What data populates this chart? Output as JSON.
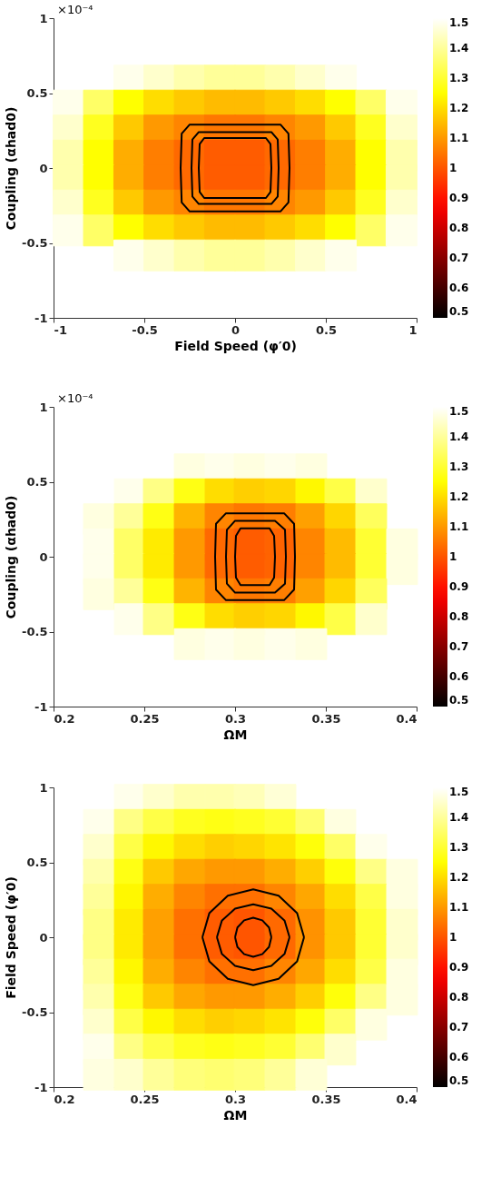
{
  "chart_data": [
    {
      "type": "scatter",
      "marker": "square",
      "xlabel": "Field Speed (φ′0)",
      "ylabel": "Coupling (αhad0)",
      "annotations": [
        "×10⁻⁴"
      ],
      "xlim": [
        -1,
        1
      ],
      "ylim": [
        -1,
        1
      ],
      "xticks": [
        -1,
        -0.5,
        0,
        0.5,
        1
      ],
      "yticks": [
        -1,
        -0.5,
        0,
        0.5,
        1
      ],
      "clim": [
        0.5,
        1.5
      ],
      "cticks": [
        0.5,
        0.6,
        0.7,
        0.8,
        0.9,
        1,
        1.1,
        1.2,
        1.3,
        1.4,
        1.5
      ],
      "grid": false,
      "series": [
        {
          "x": [
            -0.583,
            -0.417,
            -0.25,
            -0.083,
            0.083,
            0.25,
            0.417,
            0.583
          ],
          "values": [
            0.583,
            0.583,
            0.583,
            0.583,
            0.583,
            0.583,
            0.583,
            0.583
          ],
          "cvalues": [
            1.48,
            1.45,
            1.42,
            1.4,
            1.4,
            1.42,
            1.45,
            1.48
          ],
          "colors": [
            "#ffffeb",
            "#ffffcc",
            "#ffffad",
            "#ffff99",
            "#ffff99",
            "#ffffad",
            "#ffffcc",
            "#ffffeb"
          ]
        },
        {
          "x": [
            -0.917,
            -0.75,
            -0.583,
            -0.417,
            -0.25,
            -0.083,
            0.083,
            0.25,
            0.417,
            0.583,
            0.75,
            0.917
          ],
          "values": [
            0.417,
            0.417,
            0.417,
            0.417,
            0.417,
            0.417,
            0.417,
            0.417,
            0.417,
            0.417,
            0.417,
            0.417
          ],
          "cvalues": [
            1.48,
            1.35,
            1.25,
            1.2,
            1.17,
            1.15,
            1.15,
            1.17,
            1.2,
            1.25,
            1.35,
            1.48
          ],
          "colors": [
            "#ffffeb",
            "#ffff66",
            "#ffff00",
            "#ffdd00",
            "#ffc900",
            "#ffbb00",
            "#ffbb00",
            "#ffc900",
            "#ffdd00",
            "#ffff00",
            "#ffff66",
            "#ffffeb"
          ]
        },
        {
          "x": [
            -0.917,
            -0.75,
            -0.583,
            -0.417,
            -0.25,
            -0.083,
            0.083,
            0.25,
            0.417,
            0.583,
            0.75,
            0.917
          ],
          "values": [
            0.25,
            0.25,
            0.25,
            0.25,
            0.25,
            0.25,
            0.25,
            0.25,
            0.25,
            0.25,
            0.25,
            0.25
          ],
          "cvalues": [
            1.45,
            1.28,
            1.17,
            1.1,
            1.07,
            1.05,
            1.05,
            1.07,
            1.1,
            1.17,
            1.28,
            1.45
          ],
          "colors": [
            "#ffffcc",
            "#ffff1f",
            "#ffc900",
            "#ff9900",
            "#ff8500",
            "#ff7700",
            "#ff7700",
            "#ff8500",
            "#ff9900",
            "#ffc900",
            "#ffff1f",
            "#ffffcc"
          ]
        },
        {
          "x": [
            -0.917,
            -0.75,
            -0.583,
            -0.417,
            -0.25,
            -0.083,
            0.083,
            0.25,
            0.417,
            0.583,
            0.75,
            0.917
          ],
          "values": [
            0.083,
            0.083,
            0.083,
            0.083,
            0.083,
            0.083,
            0.083,
            0.083,
            0.083,
            0.083,
            0.083,
            0.083
          ],
          "cvalues": [
            1.42,
            1.25,
            1.13,
            1.06,
            1.03,
            1.01,
            1.01,
            1.03,
            1.06,
            1.13,
            1.25,
            1.42
          ],
          "colors": [
            "#ffffad",
            "#ffff00",
            "#ffad00",
            "#ff7e00",
            "#ff6900",
            "#ff5c00",
            "#ff5c00",
            "#ff6900",
            "#ff7e00",
            "#ffad00",
            "#ffff00",
            "#ffffad"
          ]
        },
        {
          "x": [
            -0.917,
            -0.75,
            -0.583,
            -0.417,
            -0.25,
            -0.083,
            0.083,
            0.25,
            0.417,
            0.583,
            0.75,
            0.917
          ],
          "values": [
            -0.083,
            -0.083,
            -0.083,
            -0.083,
            -0.083,
            -0.083,
            -0.083,
            -0.083,
            -0.083,
            -0.083,
            -0.083,
            -0.083
          ],
          "cvalues": [
            1.42,
            1.25,
            1.13,
            1.06,
            1.03,
            1.01,
            1.01,
            1.03,
            1.06,
            1.13,
            1.25,
            1.42
          ],
          "colors": [
            "#ffffad",
            "#ffff00",
            "#ffad00",
            "#ff7e00",
            "#ff6900",
            "#ff5c00",
            "#ff5c00",
            "#ff6900",
            "#ff7e00",
            "#ffad00",
            "#ffff00",
            "#ffffad"
          ]
        },
        {
          "x": [
            -0.917,
            -0.75,
            -0.583,
            -0.417,
            -0.25,
            -0.083,
            0.083,
            0.25,
            0.417,
            0.583,
            0.75,
            0.917
          ],
          "values": [
            -0.25,
            -0.25,
            -0.25,
            -0.25,
            -0.25,
            -0.25,
            -0.25,
            -0.25,
            -0.25,
            -0.25,
            -0.25,
            -0.25
          ],
          "cvalues": [
            1.45,
            1.28,
            1.17,
            1.1,
            1.07,
            1.05,
            1.05,
            1.07,
            1.1,
            1.17,
            1.28,
            1.45
          ],
          "colors": [
            "#ffffcc",
            "#ffff1f",
            "#ffc900",
            "#ff9900",
            "#ff8500",
            "#ff7700",
            "#ff7700",
            "#ff8500",
            "#ff9900",
            "#ffc900",
            "#ffff1f",
            "#ffffcc"
          ]
        },
        {
          "x": [
            -0.917,
            -0.75,
            -0.583,
            -0.417,
            -0.25,
            -0.083,
            0.083,
            0.25,
            0.417,
            0.583,
            0.75,
            0.917
          ],
          "values": [
            -0.417,
            -0.417,
            -0.417,
            -0.417,
            -0.417,
            -0.417,
            -0.417,
            -0.417,
            -0.417,
            -0.417,
            -0.417,
            -0.417
          ],
          "cvalues": [
            1.48,
            1.35,
            1.25,
            1.2,
            1.17,
            1.15,
            1.15,
            1.17,
            1.2,
            1.25,
            1.35,
            1.48
          ],
          "colors": [
            "#ffffeb",
            "#ffff66",
            "#ffff00",
            "#ffdd00",
            "#ffc900",
            "#ffbb00",
            "#ffbb00",
            "#ffc900",
            "#ffdd00",
            "#ffff00",
            "#ffff66",
            "#ffffeb"
          ]
        },
        {
          "x": [
            -0.583,
            -0.417,
            -0.25,
            -0.083,
            0.083,
            0.25,
            0.417,
            0.583
          ],
          "values": [
            -0.583,
            -0.583,
            -0.583,
            -0.583,
            -0.583,
            -0.583,
            -0.583,
            -0.583
          ],
          "cvalues": [
            1.48,
            1.45,
            1.42,
            1.4,
            1.4,
            1.42,
            1.45,
            1.48
          ],
          "colors": [
            "#ffffeb",
            "#ffffcc",
            "#ffffad",
            "#ffff99",
            "#ffff99",
            "#ffffad",
            "#ffffcc",
            "#ffffeb"
          ]
        },
        {
          "type": "line",
          "marker": "none",
          "color": "#000000",
          "x": [
            -0.2,
            -0.195,
            -0.17,
            0,
            0.17,
            0.195,
            0.2
          ],
          "values": [
            0,
            0.16,
            0.2,
            0.2,
            0.2,
            0.16,
            0
          ]
        },
        {
          "type": "line",
          "marker": "none",
          "color": "#000000",
          "x": [
            -0.2,
            -0.195,
            -0.17,
            0,
            0.17,
            0.195,
            0.2
          ],
          "values": [
            0,
            -0.16,
            -0.2,
            -0.2,
            -0.2,
            -0.16,
            0
          ]
        },
        {
          "type": "line",
          "marker": "none",
          "color": "#000000",
          "x": [
            -0.24,
            -0.235,
            -0.2,
            0,
            0.2,
            0.235,
            0.24
          ],
          "values": [
            0,
            0.19,
            0.24,
            0.24,
            0.24,
            0.19,
            0
          ]
        },
        {
          "type": "line",
          "marker": "none",
          "color": "#000000",
          "x": [
            -0.24,
            -0.235,
            -0.2,
            0,
            0.2,
            0.235,
            0.24
          ],
          "values": [
            0,
            -0.19,
            -0.24,
            -0.24,
            -0.24,
            -0.19,
            0
          ]
        },
        {
          "type": "line",
          "marker": "none",
          "color": "#000000",
          "x": [
            -0.3,
            -0.294,
            -0.25,
            0,
            0.25,
            0.294,
            0.3
          ],
          "values": [
            0,
            0.23,
            0.29,
            0.29,
            0.29,
            0.23,
            0
          ]
        },
        {
          "type": "line",
          "marker": "none",
          "color": "#000000",
          "x": [
            -0.3,
            -0.294,
            -0.25,
            0,
            0.25,
            0.294,
            0.3
          ],
          "values": [
            0,
            -0.23,
            -0.29,
            -0.29,
            -0.29,
            -0.23,
            0
          ]
        }
      ]
    },
    {
      "type": "scatter",
      "marker": "square",
      "xlabel": "ΩM",
      "ylabel": "Coupling (αhad0)",
      "annotations": [
        "×10⁻⁴"
      ],
      "xlim": [
        0.2,
        0.4
      ],
      "ylim": [
        -1,
        1
      ],
      "xticks": [
        0.2,
        0.25,
        0.3,
        0.35,
        0.4
      ],
      "yticks": [
        -1,
        -0.5,
        0,
        0.5,
        1
      ],
      "clim": [
        0.5,
        1.5
      ],
      "cticks": [
        0.5,
        0.6,
        0.7,
        0.8,
        0.9,
        1,
        1.1,
        1.2,
        1.3,
        1.4,
        1.5
      ],
      "grid": false,
      "series": [
        {
          "x": [
            0.275,
            0.292,
            0.308,
            0.325,
            0.342
          ],
          "values": [
            0.583,
            0.583,
            0.583,
            0.583,
            0.583
          ],
          "cvalues": [
            1.47,
            1.48,
            1.47,
            1.48,
            1.47
          ],
          "colors": [
            "#ffffe0",
            "#ffffeb",
            "#ffffe0",
            "#ffffeb",
            "#ffffe0"
          ]
        },
        {
          "x": [
            0.242,
            0.258,
            0.275,
            0.292,
            0.308,
            0.325,
            0.342,
            0.358,
            0.375
          ],
          "values": [
            0.417,
            0.417,
            0.417,
            0.417,
            0.417,
            0.417,
            0.417,
            0.417,
            0.417
          ],
          "cvalues": [
            1.48,
            1.38,
            1.27,
            1.2,
            1.18,
            1.19,
            1.24,
            1.32,
            1.45
          ],
          "colors": [
            "#ffffeb",
            "#ffff85",
            "#ffff14",
            "#ffdd00",
            "#ffcf00",
            "#ffd600",
            "#fff800",
            "#ffff47",
            "#ffffcc"
          ]
        },
        {
          "x": [
            0.225,
            0.242,
            0.258,
            0.275,
            0.292,
            0.308,
            0.325,
            0.342,
            0.358,
            0.375
          ],
          "values": [
            0.25,
            0.25,
            0.25,
            0.25,
            0.25,
            0.25,
            0.25,
            0.25,
            0.25,
            0.25
          ],
          "cvalues": [
            1.47,
            1.4,
            1.27,
            1.14,
            1.07,
            1.05,
            1.06,
            1.11,
            1.19,
            1.34
          ],
          "colors": [
            "#ffffe0",
            "#ffff99",
            "#ffff14",
            "#ffb400",
            "#ff8500",
            "#ff7700",
            "#ff7e00",
            "#ffa000",
            "#ffd600",
            "#ffff5c"
          ]
        },
        {
          "x": [
            0.225,
            0.242,
            0.258,
            0.275,
            0.292,
            0.308,
            0.325,
            0.342,
            0.358,
            0.375,
            0.392
          ],
          "values": [
            0.083,
            0.083,
            0.083,
            0.083,
            0.083,
            0.083,
            0.083,
            0.083,
            0.083,
            0.083,
            0.083
          ],
          "cvalues": [
            1.48,
            1.35,
            1.22,
            1.1,
            1.03,
            1.01,
            1.02,
            1.07,
            1.15,
            1.3,
            1.47
          ],
          "colors": [
            "#ffffeb",
            "#ffff66",
            "#ffeb00",
            "#ff9900",
            "#ff6900",
            "#ff5c00",
            "#ff6300",
            "#ff8500",
            "#ffbb00",
            "#ffff33",
            "#ffffe0"
          ]
        },
        {
          "x": [
            0.225,
            0.242,
            0.258,
            0.275,
            0.292,
            0.308,
            0.325,
            0.342,
            0.358,
            0.375,
            0.392
          ],
          "values": [
            -0.083,
            -0.083,
            -0.083,
            -0.083,
            -0.083,
            -0.083,
            -0.083,
            -0.083,
            -0.083,
            -0.083,
            -0.083
          ],
          "cvalues": [
            1.48,
            1.35,
            1.22,
            1.1,
            1.03,
            1.01,
            1.02,
            1.07,
            1.15,
            1.3,
            1.47
          ],
          "colors": [
            "#ffffeb",
            "#ffff66",
            "#ffeb00",
            "#ff9900",
            "#ff6900",
            "#ff5c00",
            "#ff6300",
            "#ff8500",
            "#ffbb00",
            "#ffff33",
            "#ffffe0"
          ]
        },
        {
          "x": [
            0.225,
            0.242,
            0.258,
            0.275,
            0.292,
            0.308,
            0.325,
            0.342,
            0.358,
            0.375
          ],
          "values": [
            -0.25,
            -0.25,
            -0.25,
            -0.25,
            -0.25,
            -0.25,
            -0.25,
            -0.25,
            -0.25,
            -0.25
          ],
          "cvalues": [
            1.47,
            1.4,
            1.27,
            1.14,
            1.07,
            1.05,
            1.06,
            1.11,
            1.19,
            1.34
          ],
          "colors": [
            "#ffffe0",
            "#ffff99",
            "#ffff14",
            "#ffb400",
            "#ff8500",
            "#ff7700",
            "#ff7e00",
            "#ffa000",
            "#ffd600",
            "#ffff5c"
          ]
        },
        {
          "x": [
            0.242,
            0.258,
            0.275,
            0.292,
            0.308,
            0.325,
            0.342,
            0.358,
            0.375
          ],
          "values": [
            -0.417,
            -0.417,
            -0.417,
            -0.417,
            -0.417,
            -0.417,
            -0.417,
            -0.417,
            -0.417
          ],
          "cvalues": [
            1.48,
            1.38,
            1.27,
            1.2,
            1.18,
            1.19,
            1.24,
            1.32,
            1.45
          ],
          "colors": [
            "#ffffeb",
            "#ffff85",
            "#ffff14",
            "#ffdd00",
            "#ffcf00",
            "#ffd600",
            "#fff800",
            "#ffff47",
            "#ffffcc"
          ]
        },
        {
          "x": [
            0.275,
            0.292,
            0.308,
            0.325,
            0.342
          ],
          "values": [
            -0.583,
            -0.583,
            -0.583,
            -0.583,
            -0.583
          ],
          "cvalues": [
            1.47,
            1.48,
            1.47,
            1.48,
            1.47
          ],
          "colors": [
            "#ffffe0",
            "#ffffeb",
            "#ffffe0",
            "#ffffeb",
            "#ffffe0"
          ]
        },
        {
          "type": "line",
          "marker": "none",
          "color": "#000000",
          "x": [
            0.3,
            0.3005,
            0.303,
            0.311,
            0.319,
            0.3215,
            0.322
          ],
          "values": [
            0,
            0.14,
            0.19,
            0.19,
            0.19,
            0.14,
            0
          ]
        },
        {
          "type": "line",
          "marker": "none",
          "color": "#000000",
          "x": [
            0.3,
            0.3005,
            0.303,
            0.311,
            0.319,
            0.3215,
            0.322
          ],
          "values": [
            0,
            -0.14,
            -0.19,
            -0.19,
            -0.19,
            -0.14,
            0
          ]
        },
        {
          "type": "line",
          "marker": "none",
          "color": "#000000",
          "x": [
            0.295,
            0.2955,
            0.3,
            0.311,
            0.322,
            0.3275,
            0.328
          ],
          "values": [
            0,
            0.18,
            0.24,
            0.24,
            0.24,
            0.18,
            0
          ]
        },
        {
          "type": "line",
          "marker": "none",
          "color": "#000000",
          "x": [
            0.295,
            0.2955,
            0.3,
            0.311,
            0.322,
            0.3275,
            0.328
          ],
          "values": [
            0,
            -0.18,
            -0.24,
            -0.24,
            -0.24,
            -0.18,
            0
          ]
        },
        {
          "type": "line",
          "marker": "none",
          "color": "#000000",
          "x": [
            0.289,
            0.2895,
            0.295,
            0.311,
            0.327,
            0.3325,
            0.333
          ],
          "values": [
            0,
            0.22,
            0.29,
            0.29,
            0.29,
            0.22,
            0
          ]
        },
        {
          "type": "line",
          "marker": "none",
          "color": "#000000",
          "x": [
            0.289,
            0.2895,
            0.295,
            0.311,
            0.327,
            0.3325,
            0.333
          ],
          "values": [
            0,
            -0.22,
            -0.29,
            -0.29,
            -0.29,
            -0.22,
            0
          ]
        }
      ]
    },
    {
      "type": "scatter",
      "marker": "square",
      "xlabel": "ΩM",
      "ylabel": "Field Speed (φ′0)",
      "xlim": [
        0.2,
        0.4
      ],
      "ylim": [
        -1,
        1
      ],
      "xticks": [
        0.2,
        0.25,
        0.3,
        0.35,
        0.4
      ],
      "yticks": [
        -1,
        -0.5,
        0,
        0.5,
        1
      ],
      "clim": [
        0.5,
        1.5
      ],
      "cticks": [
        0.5,
        0.6,
        0.7,
        0.8,
        0.9,
        1,
        1.1,
        1.2,
        1.3,
        1.4,
        1.5
      ],
      "grid": false,
      "series": [
        {
          "x": [
            0.242,
            0.258,
            0.275,
            0.292,
            0.308,
            0.325
          ],
          "values": [
            0.917,
            0.917,
            0.917,
            0.917,
            0.917,
            0.917
          ],
          "cvalues": [
            1.48,
            1.45,
            1.42,
            1.42,
            1.43,
            1.46
          ],
          "colors": [
            "#ffffeb",
            "#ffffcc",
            "#ffffad",
            "#ffffad",
            "#ffffb8",
            "#ffffd6"
          ]
        },
        {
          "x": [
            0.225,
            0.242,
            0.258,
            0.275,
            0.292,
            0.308,
            0.325,
            0.342,
            0.358
          ],
          "values": [
            0.75,
            0.75,
            0.75,
            0.75,
            0.75,
            0.75,
            0.75,
            0.75,
            0.75
          ],
          "cvalues": [
            1.48,
            1.38,
            1.32,
            1.28,
            1.27,
            1.28,
            1.3,
            1.36,
            1.47
          ],
          "colors": [
            "#ffffeb",
            "#ffff85",
            "#ffff47",
            "#ffff1f",
            "#ffff14",
            "#ffff1f",
            "#ffff33",
            "#ffff70",
            "#ffffe0"
          ]
        },
        {
          "x": [
            0.225,
            0.242,
            0.258,
            0.275,
            0.292,
            0.308,
            0.325,
            0.342,
            0.358,
            0.375
          ],
          "values": [
            0.583,
            0.583,
            0.583,
            0.583,
            0.583,
            0.583,
            0.583,
            0.583,
            0.583,
            0.583
          ],
          "cvalues": [
            1.45,
            1.32,
            1.24,
            1.2,
            1.18,
            1.19,
            1.21,
            1.26,
            1.35,
            1.48
          ],
          "colors": [
            "#ffffcc",
            "#ffff47",
            "#fff800",
            "#ffdd00",
            "#ffcf00",
            "#ffd600",
            "#ffe400",
            "#ffff0a",
            "#ffff66",
            "#ffffeb"
          ]
        },
        {
          "x": [
            0.225,
            0.242,
            0.258,
            0.275,
            0.292,
            0.308,
            0.325,
            0.342,
            0.358,
            0.375,
            0.392
          ],
          "values": [
            0.417,
            0.417,
            0.417,
            0.417,
            0.417,
            0.417,
            0.417,
            0.417,
            0.417,
            0.417,
            0.417
          ],
          "cvalues": [
            1.42,
            1.27,
            1.17,
            1.12,
            1.1,
            1.1,
            1.13,
            1.18,
            1.26,
            1.38,
            1.47
          ],
          "colors": [
            "#ffffad",
            "#ffff14",
            "#ffc900",
            "#ffa700",
            "#ff9900",
            "#ff9900",
            "#ffad00",
            "#ffcf00",
            "#ffff0a",
            "#ffff85",
            "#ffffe0"
          ]
        },
        {
          "x": [
            0.225,
            0.242,
            0.258,
            0.275,
            0.292,
            0.308,
            0.325,
            0.342,
            0.358,
            0.375,
            0.392
          ],
          "values": [
            0.25,
            0.25,
            0.25,
            0.25,
            0.25,
            0.25,
            0.25,
            0.25,
            0.25,
            0.25,
            0.25
          ],
          "cvalues": [
            1.4,
            1.24,
            1.13,
            1.07,
            1.04,
            1.04,
            1.07,
            1.12,
            1.2,
            1.32,
            1.47
          ],
          "colors": [
            "#ffff99",
            "#fff800",
            "#ffad00",
            "#ff8500",
            "#ff7000",
            "#ff7000",
            "#ff8500",
            "#ffa700",
            "#ffdd00",
            "#ffff47",
            "#ffffe0"
          ]
        },
        {
          "x": [
            0.225,
            0.242,
            0.258,
            0.275,
            0.292,
            0.308,
            0.325,
            0.342,
            0.358,
            0.375,
            0.392
          ],
          "values": [
            0.083,
            0.083,
            0.083,
            0.083,
            0.083,
            0.083,
            0.083,
            0.083,
            0.083,
            0.083,
            0.083
          ],
          "cvalues": [
            1.38,
            1.22,
            1.11,
            1.04,
            1.01,
            1.0,
            1.03,
            1.09,
            1.17,
            1.3,
            1.45
          ],
          "colors": [
            "#ffff85",
            "#ffeb00",
            "#ffa000",
            "#ff7000",
            "#ff5c00",
            "#ff5500",
            "#ff6900",
            "#ff9200",
            "#ffc900",
            "#ffff33",
            "#ffffcc"
          ]
        },
        {
          "x": [
            0.225,
            0.242,
            0.258,
            0.275,
            0.292,
            0.308,
            0.325,
            0.342,
            0.358,
            0.375,
            0.392
          ],
          "values": [
            -0.083,
            -0.083,
            -0.083,
            -0.083,
            -0.083,
            -0.083,
            -0.083,
            -0.083,
            -0.083,
            -0.083,
            -0.083
          ],
          "cvalues": [
            1.38,
            1.22,
            1.11,
            1.04,
            1.01,
            1.0,
            1.03,
            1.09,
            1.17,
            1.3,
            1.45
          ],
          "colors": [
            "#ffff85",
            "#ffeb00",
            "#ffa000",
            "#ff7000",
            "#ff5c00",
            "#ff5500",
            "#ff6900",
            "#ff9200",
            "#ffc900",
            "#ffff33",
            "#ffffcc"
          ]
        },
        {
          "x": [
            0.225,
            0.242,
            0.258,
            0.275,
            0.292,
            0.308,
            0.325,
            0.342,
            0.358,
            0.375,
            0.392
          ],
          "values": [
            -0.25,
            -0.25,
            -0.25,
            -0.25,
            -0.25,
            -0.25,
            -0.25,
            -0.25,
            -0.25,
            -0.25,
            -0.25
          ],
          "cvalues": [
            1.4,
            1.24,
            1.13,
            1.07,
            1.04,
            1.04,
            1.07,
            1.12,
            1.2,
            1.32,
            1.47
          ],
          "colors": [
            "#ffff99",
            "#fff800",
            "#ffad00",
            "#ff8500",
            "#ff7000",
            "#ff7000",
            "#ff8500",
            "#ffa700",
            "#ffdd00",
            "#ffff47",
            "#ffffe0"
          ]
        },
        {
          "x": [
            0.225,
            0.242,
            0.258,
            0.275,
            0.292,
            0.308,
            0.325,
            0.342,
            0.358,
            0.375,
            0.392
          ],
          "values": [
            -0.417,
            -0.417,
            -0.417,
            -0.417,
            -0.417,
            -0.417,
            -0.417,
            -0.417,
            -0.417,
            -0.417,
            -0.417
          ],
          "cvalues": [
            1.42,
            1.27,
            1.17,
            1.12,
            1.1,
            1.1,
            1.13,
            1.18,
            1.26,
            1.38,
            1.47
          ],
          "colors": [
            "#ffffad",
            "#ffff14",
            "#ffc900",
            "#ffa700",
            "#ff9900",
            "#ff9900",
            "#ffad00",
            "#ffcf00",
            "#ffff0a",
            "#ffff85",
            "#ffffe0"
          ]
        },
        {
          "x": [
            0.225,
            0.242,
            0.258,
            0.275,
            0.292,
            0.308,
            0.325,
            0.342,
            0.358,
            0.375
          ],
          "values": [
            -0.583,
            -0.583,
            -0.583,
            -0.583,
            -0.583,
            -0.583,
            -0.583,
            -0.583,
            -0.583,
            -0.583
          ],
          "cvalues": [
            1.45,
            1.32,
            1.24,
            1.2,
            1.18,
            1.19,
            1.21,
            1.26,
            1.35,
            1.47
          ],
          "colors": [
            "#ffffcc",
            "#ffff47",
            "#fff800",
            "#ffdd00",
            "#ffcf00",
            "#ffd600",
            "#ffe400",
            "#ffff0a",
            "#ffff66",
            "#ffffe0"
          ]
        },
        {
          "x": [
            0.225,
            0.242,
            0.258,
            0.275,
            0.292,
            0.308,
            0.325,
            0.342,
            0.358
          ],
          "values": [
            -0.75,
            -0.75,
            -0.75,
            -0.75,
            -0.75,
            -0.75,
            -0.75,
            -0.75,
            -0.75
          ],
          "cvalues": [
            1.48,
            1.38,
            1.32,
            1.28,
            1.27,
            1.28,
            1.3,
            1.36,
            1.45
          ],
          "colors": [
            "#ffffeb",
            "#ffff85",
            "#ffff47",
            "#ffff1f",
            "#ffff14",
            "#ffff1f",
            "#ffff33",
            "#ffff70",
            "#ffffcc"
          ]
        },
        {
          "x": [
            0.225,
            0.242,
            0.258,
            0.275,
            0.292,
            0.308,
            0.325,
            0.342
          ],
          "values": [
            -0.917,
            -0.917,
            -0.917,
            -0.917,
            -0.917,
            -0.917,
            -0.917,
            -0.917
          ],
          "cvalues": [
            1.47,
            1.45,
            1.4,
            1.37,
            1.36,
            1.37,
            1.4,
            1.46
          ],
          "colors": [
            "#ffffe0",
            "#ffffcc",
            "#ffff99",
            "#ffff7a",
            "#ffff70",
            "#ffff7a",
            "#ffff99",
            "#ffffd6"
          ]
        },
        {
          "type": "line",
          "marker": "none",
          "color": "#000000",
          "x": [
            0.3,
            0.3013,
            0.305,
            0.31,
            0.315,
            0.3187,
            0.32
          ],
          "values": [
            0,
            0.065,
            0.113,
            0.13,
            0.113,
            0.065,
            0
          ]
        },
        {
          "type": "line",
          "marker": "none",
          "color": "#000000",
          "x": [
            0.3,
            0.3013,
            0.305,
            0.31,
            0.315,
            0.3187,
            0.32
          ],
          "values": [
            0,
            -0.065,
            -0.113,
            -0.13,
            -0.113,
            -0.065,
            0
          ]
        },
        {
          "type": "line",
          "marker": "none",
          "color": "#000000",
          "x": [
            0.29,
            0.2927,
            0.3,
            0.31,
            0.32,
            0.3273,
            0.33
          ],
          "values": [
            0,
            0.11,
            0.191,
            0.22,
            0.191,
            0.11,
            0
          ]
        },
        {
          "type": "line",
          "marker": "none",
          "color": "#000000",
          "x": [
            0.29,
            0.2927,
            0.3,
            0.31,
            0.32,
            0.3273,
            0.33
          ],
          "values": [
            0,
            -0.11,
            -0.191,
            -0.22,
            -0.191,
            -0.11,
            0
          ]
        },
        {
          "type": "line",
          "marker": "none",
          "color": "#000000",
          "x": [
            0.282,
            0.2858,
            0.296,
            0.31,
            0.324,
            0.3342,
            0.338
          ],
          "values": [
            0,
            0.16,
            0.277,
            0.32,
            0.277,
            0.16,
            0
          ]
        },
        {
          "type": "line",
          "marker": "none",
          "color": "#000000",
          "x": [
            0.282,
            0.2858,
            0.296,
            0.31,
            0.324,
            0.3342,
            0.338
          ],
          "values": [
            0,
            -0.16,
            -0.277,
            -0.32,
            -0.277,
            -0.16,
            0
          ]
        }
      ]
    }
  ]
}
